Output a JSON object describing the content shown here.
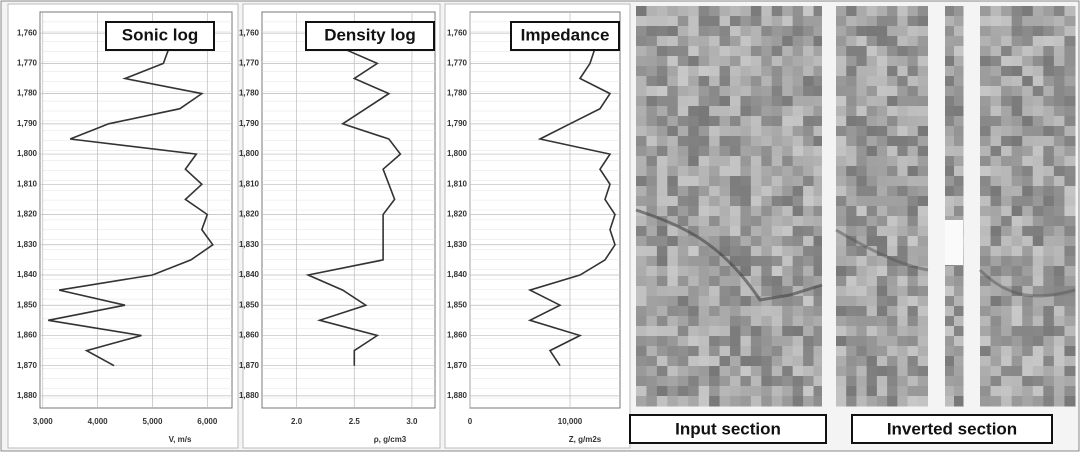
{
  "chart_data": [
    {
      "type": "line",
      "title": "Sonic log",
      "xlabel": "V, m/s",
      "y": [
        1765,
        1770,
        1775,
        1780,
        1785,
        1790,
        1795,
        1800,
        1805,
        1810,
        1815,
        1820,
        1825,
        1830,
        1835,
        1840,
        1845,
        1850,
        1855,
        1860,
        1865,
        1870
      ],
      "series": [
        {
          "color": "#333333",
          "values": [
            5300,
            5200,
            4500,
            5900,
            5500,
            4200,
            3500,
            5800,
            5600,
            5900,
            5600,
            6000,
            5900,
            6100,
            5700,
            5000,
            3300,
            4500,
            3100,
            4800,
            3800,
            4300
          ]
        }
      ],
      "xlim": [
        2950,
        6450
      ],
      "xticks": [
        {
          "value": 3000,
          "label": "3,000"
        },
        {
          "value": 4000,
          "label": "4,000"
        },
        {
          "value": 5000,
          "label": "5,000"
        },
        {
          "value": 6000,
          "label": "6,000"
        }
      ],
      "ylim": [
        1753,
        1884
      ],
      "yticks": [
        {
          "value": 1760,
          "label": "1,760"
        },
        {
          "value": 1770,
          "label": "1,770"
        },
        {
          "value": 1780,
          "label": "1,780"
        },
        {
          "value": 1790,
          "label": "1,790"
        },
        {
          "value": 1800,
          "label": "1,800"
        },
        {
          "value": 1810,
          "label": "1,810"
        },
        {
          "value": 1820,
          "label": "1,820"
        },
        {
          "value": 1830,
          "label": "1,830"
        },
        {
          "value": 1840,
          "label": "1,840"
        },
        {
          "value": 1850,
          "label": "1,850"
        },
        {
          "value": 1860,
          "label": "1,860"
        },
        {
          "value": 1870,
          "label": "1,870"
        },
        {
          "value": 1880,
          "label": "1,880"
        }
      ],
      "grid": true
    },
    {
      "type": "line",
      "title": "Density log",
      "xlabel": "ρ, g/cm3",
      "y": [
        1765,
        1770,
        1775,
        1780,
        1785,
        1790,
        1795,
        1800,
        1805,
        1810,
        1815,
        1820,
        1825,
        1830,
        1835,
        1840,
        1845,
        1850,
        1855,
        1860,
        1865,
        1870
      ],
      "series": [
        {
          "color": "#333333",
          "values": [
            2.4,
            2.7,
            2.5,
            2.8,
            2.6,
            2.4,
            2.8,
            2.9,
            2.75,
            2.8,
            2.85,
            2.75,
            2.75,
            2.75,
            2.75,
            2.1,
            2.4,
            2.6,
            2.2,
            2.7,
            2.5,
            2.5
          ]
        }
      ],
      "xlim": [
        1.7,
        3.2
      ],
      "xticks": [
        {
          "value": 2,
          "label": "2.0"
        },
        2.5,
        {
          "value": 3,
          "label": "3.0"
        }
      ],
      "ylim": [
        1753,
        1884
      ],
      "yticks": [
        {
          "value": 1760,
          "label": "1,760"
        },
        {
          "value": 1770,
          "label": "1,770"
        },
        {
          "value": 1780,
          "label": "1,780"
        },
        {
          "value": 1790,
          "label": "1,790"
        },
        {
          "value": 1800,
          "label": "1,800"
        },
        {
          "value": 1810,
          "label": "1,810"
        },
        {
          "value": 1820,
          "label": "1,820"
        },
        {
          "value": 1830,
          "label": "1,830"
        },
        {
          "value": 1840,
          "label": "1,840"
        },
        {
          "value": 1850,
          "label": "1,850"
        },
        {
          "value": 1860,
          "label": "1,860"
        },
        {
          "value": 1870,
          "label": "1,870"
        },
        {
          "value": 1880,
          "label": "1,880"
        }
      ],
      "grid": true
    },
    {
      "type": "line",
      "title": "Impedance",
      "xlabel": "Z, g/m2s",
      "y": [
        1765,
        1770,
        1775,
        1780,
        1785,
        1790,
        1795,
        1800,
        1805,
        1810,
        1815,
        1820,
        1825,
        1830,
        1835,
        1840,
        1845,
        1850,
        1855,
        1860,
        1865,
        1870
      ],
      "series": [
        {
          "color": "#333333",
          "values": [
            12500,
            12000,
            11000,
            14000,
            13000,
            10000,
            7000,
            14000,
            13000,
            14000,
            13500,
            14500,
            14000,
            14500,
            13500,
            11000,
            6000,
            9000,
            6000,
            11000,
            8000,
            9000
          ]
        }
      ],
      "xlim": [
        0,
        15000
      ],
      "xticks": [
        0,
        {
          "value": 10000,
          "label": "10,000"
        }
      ],
      "ylim": [
        1753,
        1884
      ],
      "yticks": [
        {
          "value": 1760,
          "label": "1,760"
        },
        {
          "value": 1770,
          "label": "1,770"
        },
        {
          "value": 1780,
          "label": "1,780"
        },
        {
          "value": 1790,
          "label": "1,790"
        },
        {
          "value": 1800,
          "label": "1,800"
        },
        {
          "value": 1810,
          "label": "1,810"
        },
        {
          "value": 1820,
          "label": "1,820"
        },
        {
          "value": 1830,
          "label": "1,830"
        },
        {
          "value": 1840,
          "label": "1,840"
        },
        {
          "value": 1850,
          "label": "1,850"
        },
        {
          "value": 1860,
          "label": "1,860"
        },
        {
          "value": 1870,
          "label": "1,870"
        },
        {
          "value": 1880,
          "label": "1,880"
        }
      ],
      "grid": true
    }
  ],
  "panels": [
    {
      "label": "Input section"
    },
    {
      "label": "Inverted section"
    }
  ]
}
